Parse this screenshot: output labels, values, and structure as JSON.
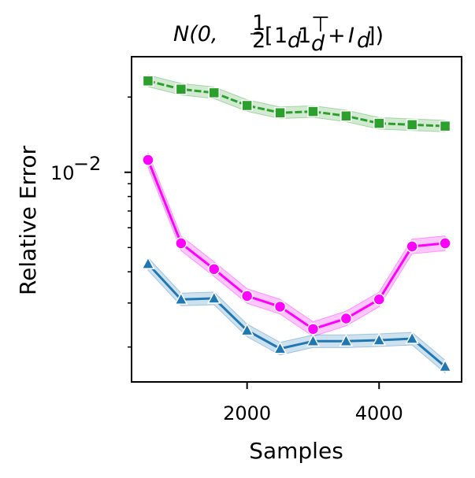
{
  "chart_data": {
    "type": "line",
    "title": "N(0, ½[1_d1_d^⊤ + I_d])",
    "title_parts": {
      "main": "N(0,",
      "frac_num": "1",
      "frac_den": "2",
      "bracket_open": "[",
      "one": "1",
      "sub_d": "d",
      "transpose": "⊤",
      "plus": "+",
      "identity": "I",
      "bracket_close": "])"
    },
    "xlabel": "Samples",
    "ylabel": "Relative Error",
    "xscale": "linear",
    "yscale": "log",
    "xlim": [
      250,
      5250
    ],
    "ylim": [
      0.00145,
      0.029
    ],
    "x_ticks": [
      2000,
      4000
    ],
    "x_tick_labels": [
      "2000",
      "4000"
    ],
    "y_major_tick": {
      "base": "10",
      "exponent": "−2",
      "value": 0.01
    },
    "y_minor_ticks": [
      0.002,
      0.003,
      0.004,
      0.005,
      0.006,
      0.007,
      0.008,
      0.009,
      0.02
    ],
    "grid": false,
    "legend": "none",
    "x": [
      500,
      1000,
      1500,
      2000,
      2500,
      3000,
      3500,
      4000,
      4500,
      5000
    ],
    "series": [
      {
        "name": "green",
        "color": "#2ca02c",
        "marker": "square",
        "values": [
          0.0232,
          0.0215,
          0.0208,
          0.0185,
          0.0173,
          0.0175,
          0.0168,
          0.0157,
          0.0155,
          0.0153
        ],
        "band_width": 0.055
      },
      {
        "name": "magenta",
        "color": "#ff00ff",
        "marker": "circle",
        "values": [
          0.0112,
          0.0052,
          0.0041,
          0.0032,
          0.0029,
          0.00236,
          0.0026,
          0.0031,
          0.00505,
          0.0052
        ],
        "band_width": 0.07
      },
      {
        "name": "blue",
        "color": "#1f77b4",
        "marker": "triangle",
        "values": [
          0.0043,
          0.0031,
          0.00313,
          0.00233,
          0.00197,
          0.00211,
          0.00211,
          0.00213,
          0.00216,
          0.00167
        ],
        "band_width": 0.06
      }
    ]
  }
}
